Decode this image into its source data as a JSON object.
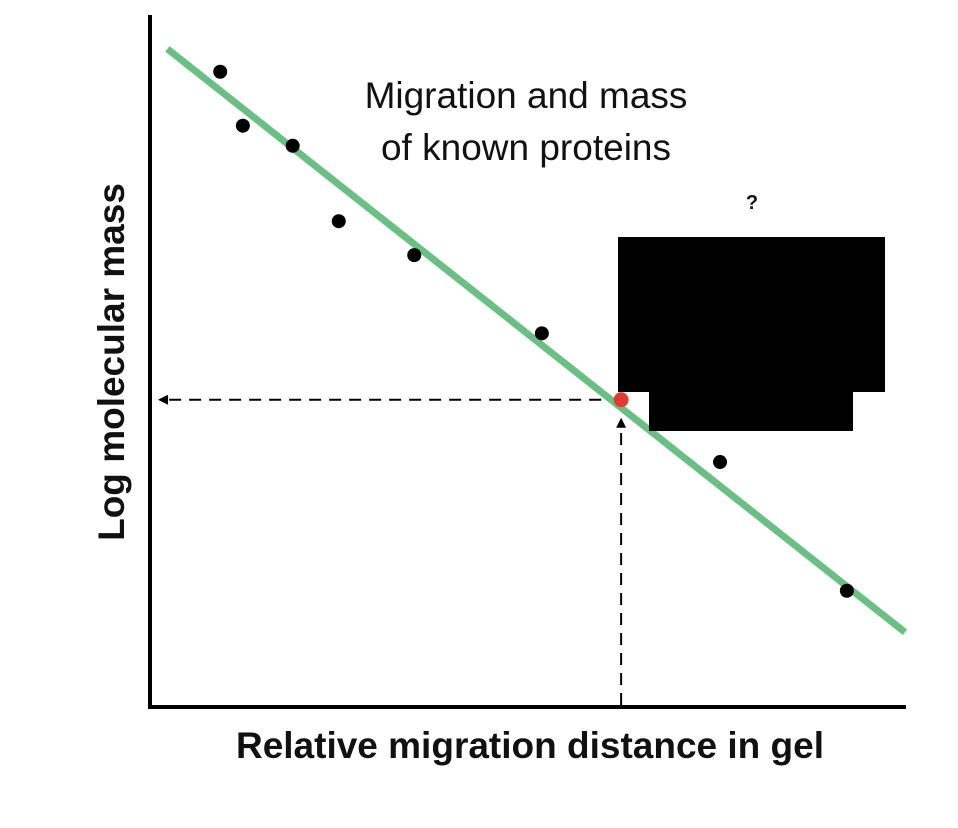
{
  "chart_data": {
    "type": "scatter",
    "title": [
      "Migration and mass",
      "of known proteins"
    ],
    "xlabel": "Relative migration distance in gel",
    "ylabel": "Log molecular mass",
    "annotation": "?",
    "xlim": [
      0,
      10
    ],
    "ylim": [
      0,
      10
    ],
    "grid": false,
    "axis_ticks": false,
    "series": [
      {
        "role": "known proteins",
        "color": "#000000",
        "points": [
          [
            0.93,
            9.18
          ],
          [
            1.23,
            8.4
          ],
          [
            1.89,
            8.11
          ],
          [
            2.5,
            7.02
          ],
          [
            3.5,
            6.53
          ],
          [
            5.19,
            5.4
          ],
          [
            7.55,
            3.54
          ],
          [
            9.23,
            1.68
          ]
        ]
      }
    ],
    "fit_line": {
      "color": "#6bbf85",
      "from": [
        0.23,
        9.51
      ],
      "to": [
        10,
        1.08
      ]
    },
    "unknown_point": {
      "color": "#e03a34",
      "x": 6.24,
      "y": 4.44
    },
    "redacted_color": "#000000"
  }
}
